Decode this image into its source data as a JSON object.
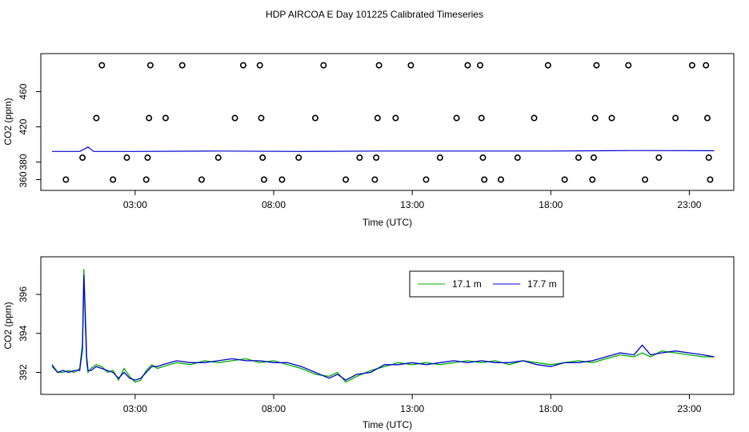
{
  "title": "HDP AIRCOA E  Day 101225  Calibrated Timeseries",
  "chart_data": [
    {
      "type": "scatter",
      "xlabel": "Time (UTC)",
      "ylabel": "CO2 (ppm)",
      "xlim": [
        0,
        24.2
      ],
      "ylim": [
        355,
        496
      ],
      "x_ticks": [
        3,
        8,
        13,
        18,
        23
      ],
      "x_tick_labels": [
        "03:00",
        "08:00",
        "13:00",
        "18:00",
        "23:00"
      ],
      "y_ticks": [
        360,
        380,
        420,
        460
      ],
      "y_tick_labels": [
        "360",
        "380",
        "420",
        "460"
      ],
      "grid": false,
      "outliers": [
        {
          "x": 0.5,
          "y": 360
        },
        {
          "x": 1.1,
          "y": 385
        },
        {
          "x": 1.6,
          "y": 430
        },
        {
          "x": 1.8,
          "y": 490
        },
        {
          "x": 2.2,
          "y": 360
        },
        {
          "x": 2.7,
          "y": 385
        },
        {
          "x": 3.4,
          "y": 360
        },
        {
          "x": 3.45,
          "y": 385
        },
        {
          "x": 3.5,
          "y": 430
        },
        {
          "x": 3.55,
          "y": 490
        },
        {
          "x": 4.7,
          "y": 490
        },
        {
          "x": 4.1,
          "y": 430
        },
        {
          "x": 5.4,
          "y": 360
        },
        {
          "x": 6.0,
          "y": 385
        },
        {
          "x": 6.6,
          "y": 430
        },
        {
          "x": 6.9,
          "y": 490
        },
        {
          "x": 7.5,
          "y": 490
        },
        {
          "x": 7.55,
          "y": 430
        },
        {
          "x": 7.6,
          "y": 385
        },
        {
          "x": 7.65,
          "y": 360
        },
        {
          "x": 8.3,
          "y": 360
        },
        {
          "x": 8.9,
          "y": 385
        },
        {
          "x": 9.5,
          "y": 430
        },
        {
          "x": 9.8,
          "y": 490
        },
        {
          "x": 10.6,
          "y": 360
        },
        {
          "x": 11.1,
          "y": 385
        },
        {
          "x": 11.65,
          "y": 360
        },
        {
          "x": 11.7,
          "y": 385
        },
        {
          "x": 11.75,
          "y": 430
        },
        {
          "x": 11.8,
          "y": 490
        },
        {
          "x": 12.4,
          "y": 430
        },
        {
          "x": 12.95,
          "y": 490
        },
        {
          "x": 13.5,
          "y": 360
        },
        {
          "x": 14.0,
          "y": 385
        },
        {
          "x": 14.6,
          "y": 430
        },
        {
          "x": 15.0,
          "y": 490
        },
        {
          "x": 15.45,
          "y": 490
        },
        {
          "x": 15.5,
          "y": 430
        },
        {
          "x": 15.55,
          "y": 385
        },
        {
          "x": 15.6,
          "y": 360
        },
        {
          "x": 16.2,
          "y": 360
        },
        {
          "x": 16.8,
          "y": 385
        },
        {
          "x": 17.4,
          "y": 430
        },
        {
          "x": 17.9,
          "y": 490
        },
        {
          "x": 18.5,
          "y": 360
        },
        {
          "x": 19.0,
          "y": 385
        },
        {
          "x": 19.5,
          "y": 360
        },
        {
          "x": 19.55,
          "y": 385
        },
        {
          "x": 19.6,
          "y": 430
        },
        {
          "x": 19.65,
          "y": 490
        },
        {
          "x": 20.2,
          "y": 430
        },
        {
          "x": 20.8,
          "y": 490
        },
        {
          "x": 21.4,
          "y": 360
        },
        {
          "x": 21.9,
          "y": 385
        },
        {
          "x": 22.5,
          "y": 430
        },
        {
          "x": 23.1,
          "y": 490
        },
        {
          "x": 23.6,
          "y": 490
        },
        {
          "x": 23.65,
          "y": 430
        },
        {
          "x": 23.7,
          "y": 385
        },
        {
          "x": 23.75,
          "y": 360
        }
      ],
      "baseline": {
        "x": [
          0,
          1.0,
          1.3,
          1.5,
          3.0,
          6.0,
          9.0,
          12.0,
          15.0,
          18.0,
          21.0,
          23.9
        ],
        "y": [
          392,
          392,
          397,
          392,
          392,
          392.5,
          392,
          392.5,
          392.5,
          392.5,
          393,
          392.8
        ]
      }
    },
    {
      "type": "line",
      "xlabel": "Time (UTC)",
      "ylabel": "CO2 (ppm)",
      "xlim": [
        0,
        24.2
      ],
      "ylim": [
        391.2,
        397.6
      ],
      "x_ticks": [
        3,
        8,
        13,
        18,
        23
      ],
      "x_tick_labels": [
        "03:00",
        "08:00",
        "13:00",
        "18:00",
        "23:00"
      ],
      "y_ticks": [
        392,
        394,
        396
      ],
      "y_tick_labels": [
        "392",
        "394",
        "396"
      ],
      "grid": false,
      "legend_position": "top-center",
      "x": [
        0.0,
        0.2,
        0.4,
        0.6,
        0.8,
        1.0,
        1.1,
        1.15,
        1.2,
        1.25,
        1.3,
        1.4,
        1.6,
        1.8,
        2.0,
        2.2,
        2.4,
        2.6,
        2.8,
        3.0,
        3.2,
        3.4,
        3.6,
        3.8,
        4.0,
        4.5,
        5.0,
        5.5,
        6.0,
        6.5,
        7.0,
        7.5,
        8.0,
        8.5,
        9.0,
        9.5,
        10.0,
        10.3,
        10.6,
        11.0,
        11.5,
        12.0,
        12.5,
        13.0,
        13.5,
        14.0,
        14.5,
        15.0,
        15.5,
        16.0,
        16.5,
        17.0,
        17.5,
        18.0,
        18.5,
        19.0,
        19.5,
        20.0,
        20.5,
        21.0,
        21.3,
        21.6,
        22.0,
        22.5,
        23.0,
        23.5,
        23.9
      ],
      "series": [
        {
          "name": "17.1 m",
          "color": "#00b000",
          "values": [
            392.3,
            392.0,
            392.0,
            392.1,
            392.0,
            392.2,
            393.5,
            397.3,
            394.5,
            392.5,
            392.0,
            392.2,
            392.4,
            392.3,
            392.0,
            392.1,
            391.6,
            392.2,
            391.8,
            391.5,
            391.6,
            392.1,
            392.4,
            392.2,
            392.3,
            392.5,
            392.4,
            392.6,
            392.5,
            392.6,
            392.7,
            392.5,
            392.6,
            392.4,
            392.2,
            391.9,
            391.8,
            392.0,
            391.5,
            391.8,
            392.1,
            392.3,
            392.5,
            392.4,
            392.5,
            392.4,
            392.5,
            392.6,
            392.5,
            392.6,
            392.4,
            392.6,
            392.5,
            392.4,
            392.5,
            392.6,
            392.5,
            392.7,
            392.9,
            392.8,
            393.0,
            392.8,
            393.1,
            393.0,
            392.9,
            392.8,
            392.8
          ]
        },
        {
          "name": "17.7 m",
          "color": "#0000d0",
          "values": [
            392.4,
            392.0,
            392.1,
            392.0,
            392.1,
            392.1,
            393.2,
            397.0,
            395.0,
            392.8,
            392.1,
            392.1,
            392.3,
            392.2,
            392.1,
            392.0,
            391.7,
            392.0,
            391.7,
            391.6,
            391.7,
            392.0,
            392.3,
            392.3,
            392.4,
            392.6,
            392.5,
            392.5,
            392.6,
            392.7,
            392.6,
            392.6,
            392.5,
            392.5,
            392.3,
            392.0,
            391.7,
            391.9,
            391.6,
            391.9,
            392.0,
            392.4,
            392.4,
            392.5,
            392.4,
            392.5,
            392.6,
            392.5,
            392.6,
            392.5,
            392.5,
            392.6,
            392.4,
            392.3,
            392.5,
            392.5,
            392.6,
            392.8,
            393.0,
            392.9,
            393.4,
            392.9,
            393.0,
            393.1,
            393.0,
            392.9,
            392.8
          ]
        }
      ]
    }
  ]
}
